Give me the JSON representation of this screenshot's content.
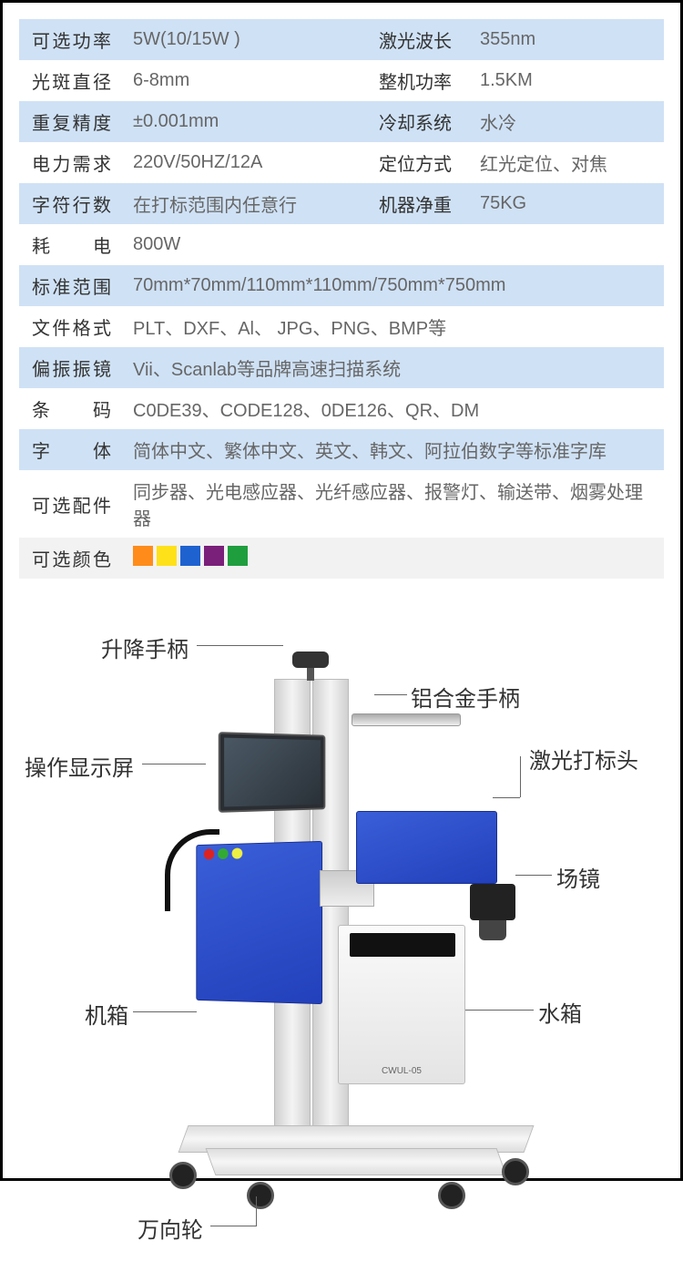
{
  "table": {
    "rows": [
      {
        "style": "blue",
        "cells": [
          {
            "type": "label",
            "text": "可选功率"
          },
          {
            "text": "5W(10/15W )"
          },
          {
            "type": "label2",
            "text": "激光波长"
          },
          {
            "text": "355nm"
          }
        ]
      },
      {
        "style": "white",
        "cells": [
          {
            "type": "label",
            "text": "光斑直径"
          },
          {
            "text": "6-8mm"
          },
          {
            "type": "label2",
            "text": "整机功率"
          },
          {
            "text": " 1.5KM"
          }
        ]
      },
      {
        "style": "blue",
        "cells": [
          {
            "type": "label",
            "text": "重复精度"
          },
          {
            "text": "±0.001mm"
          },
          {
            "type": "label2",
            "text": "冷却系统"
          },
          {
            "text": "水冷"
          }
        ]
      },
      {
        "style": "white",
        "cells": [
          {
            "type": "label",
            "text": "电力需求"
          },
          {
            "text": " 220V/50HZ/12A"
          },
          {
            "type": "label2",
            "text": "定位方式"
          },
          {
            "text": "红光定位、对焦"
          }
        ]
      },
      {
        "style": "blue",
        "cells": [
          {
            "type": "label",
            "text": "字符行数"
          },
          {
            "text": "在打标范围内任意行"
          },
          {
            "type": "label2",
            "text": "机器净重"
          },
          {
            "text": "75KG"
          }
        ]
      },
      {
        "style": "white",
        "cells": [
          {
            "type": "label",
            "text": "耗　　电"
          },
          {
            "text": "800W",
            "colspan": 3
          }
        ]
      },
      {
        "style": "blue",
        "cells": [
          {
            "type": "label",
            "text": "标准范围"
          },
          {
            "text": "70mm*70mm/110mm*110mm/750mm*750mm",
            "colspan": 3
          }
        ]
      },
      {
        "style": "white",
        "cells": [
          {
            "type": "label",
            "text": "文件格式"
          },
          {
            "text": "PLT、DXF、Al、 JPG、PNG、BMP等",
            "colspan": 3
          }
        ]
      },
      {
        "style": "blue",
        "cells": [
          {
            "type": "label",
            "text": "偏振振镜"
          },
          {
            "text": " Vii、Scanlab等品牌高速扫描系统",
            "colspan": 3
          }
        ]
      },
      {
        "style": "white",
        "cells": [
          {
            "type": "label",
            "text": "条　　码"
          },
          {
            "text": "C0DE39、CODE128、0DE126、QR、DM",
            "colspan": 3
          }
        ]
      },
      {
        "style": "blue",
        "cells": [
          {
            "type": "label",
            "text": "字　　体"
          },
          {
            "text": "简体中文、繁体中文、英文、韩文、阿拉伯数字等标准字库",
            "colspan": 3
          }
        ]
      },
      {
        "style": "white",
        "cells": [
          {
            "type": "label",
            "text": "可选配件"
          },
          {
            "text": "同步器、光电感应器、光纤感应器、报警灯、输送带、烟雾处理器",
            "colspan": 3
          }
        ]
      },
      {
        "style": "grey",
        "cells": [
          {
            "type": "label",
            "text": "可选颜色"
          },
          {
            "type": "swatches",
            "colspan": 3
          }
        ]
      }
    ],
    "swatch_colors": [
      "#ff8c1a",
      "#ffe11a",
      "#1e62d0",
      "#7a1f7a",
      "#1f9e3e"
    ]
  },
  "callouts": {
    "lift_handle": "升降手柄",
    "alu_handle": "铝合金手柄",
    "screen": "操作显示屏",
    "laser_head": "激光打标头",
    "lens": "场镜",
    "chassis": "机箱",
    "water_tank": "水箱",
    "caster": "万向轮"
  },
  "chiller_label": "CWUL-05",
  "callout_style": {
    "font_size": 24,
    "color": "#333333",
    "line_color": "#666666"
  },
  "control_buttons": [
    "#d22",
    "#3a3",
    "#ee4"
  ]
}
